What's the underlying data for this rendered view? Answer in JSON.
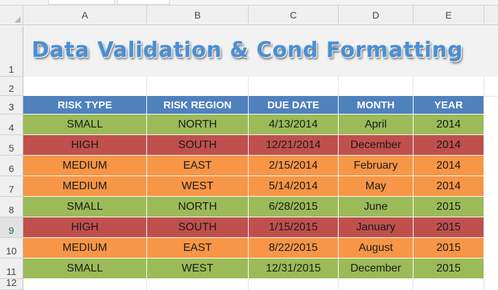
{
  "columns": [
    "A",
    "B",
    "C",
    "D",
    "E"
  ],
  "rows": [
    "1",
    "2",
    "3",
    "4",
    "5",
    "6",
    "7",
    "8",
    "9",
    "10",
    "11",
    "12"
  ],
  "selected_row": "9",
  "title": "Data Validation & Cond Formatting",
  "table": {
    "headers": [
      "RISK TYPE",
      "RISK REGION",
      "DUE DATE",
      "MONTH",
      "YEAR"
    ],
    "rows": [
      {
        "risk_type": "SMALL",
        "risk_region": "NORTH",
        "due_date": "4/13/2014",
        "month": "April",
        "year": "2014",
        "color": "green"
      },
      {
        "risk_type": "HIGH",
        "risk_region": "SOUTH",
        "due_date": "12/21/2014",
        "month": "December",
        "year": "2014",
        "color": "red"
      },
      {
        "risk_type": "MEDIUM",
        "risk_region": "EAST",
        "due_date": "2/15/2014",
        "month": "February",
        "year": "2014",
        "color": "orange"
      },
      {
        "risk_type": "MEDIUM",
        "risk_region": "WEST",
        "due_date": "5/14/2014",
        "month": "May",
        "year": "2014",
        "color": "orange"
      },
      {
        "risk_type": "SMALL",
        "risk_region": "NORTH",
        "due_date": "6/28/2015",
        "month": "June",
        "year": "2015",
        "color": "green"
      },
      {
        "risk_type": "HIGH",
        "risk_region": "SOUTH",
        "due_date": "1/15/2015",
        "month": "January",
        "year": "2015",
        "color": "red"
      },
      {
        "risk_type": "MEDIUM",
        "risk_region": "EAST",
        "due_date": "8/22/2015",
        "month": "August",
        "year": "2015",
        "color": "orange"
      },
      {
        "risk_type": "SMALL",
        "risk_region": "WEST",
        "due_date": "12/31/2015",
        "month": "December",
        "year": "2015",
        "color": "green"
      }
    ]
  },
  "colors": {
    "header_blue": "#4f81bd",
    "small_green": "#9bbb59",
    "high_red": "#c0504d",
    "medium_orange": "#f79646",
    "title_blue": "#4a90d2"
  }
}
